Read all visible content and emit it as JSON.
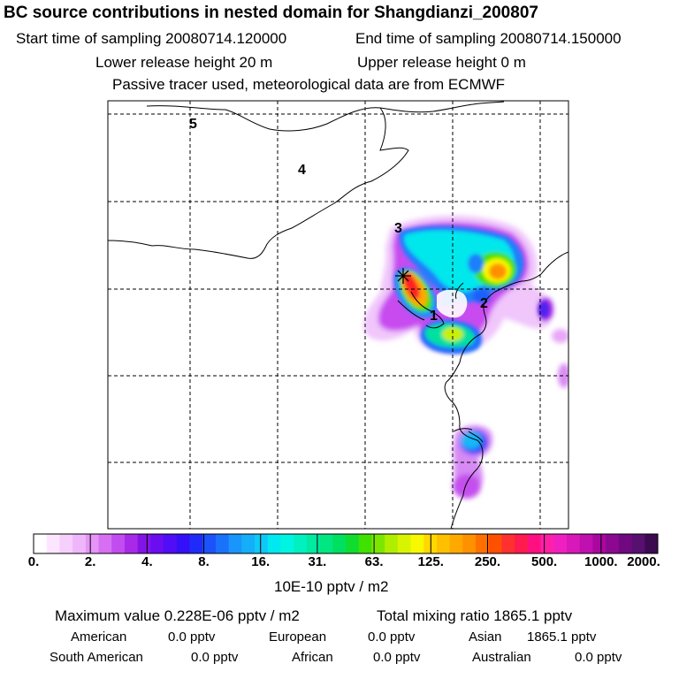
{
  "header": {
    "title": "BC  source contributions in nested domain for Shangdianzi_200807",
    "start_label": "Start time of sampling 20080714.120000",
    "end_label": "End time of sampling 20080714.150000",
    "lower_label": "Lower release height   20 m",
    "upper_label": "Upper release height    0 m",
    "tracer_note": "Passive tracer used, meteorological data are from ECMWF"
  },
  "map": {
    "region_labels": [
      "1",
      "2",
      "3",
      "4",
      "5"
    ],
    "receptor_marker": "star-marker"
  },
  "colorbar": {
    "tick_labels": [
      "0.",
      "2.",
      "4.",
      "8.",
      "16.",
      "31.",
      "63.",
      "125.",
      "250.",
      "500.",
      "1000.",
      "2000."
    ],
    "colors": [
      "#ffffff",
      "#fce6ff",
      "#f6cffd",
      "#efb6fb",
      "#e694f6",
      "#d76ff3",
      "#c24cf0",
      "#a82ae8",
      "#8314e6",
      "#6a0df0",
      "#4f0ef5",
      "#3410f8",
      "#1f2cf9",
      "#1c52fa",
      "#1a72fb",
      "#1995fb",
      "#14aef9",
      "#10c8f6",
      "#00e8f0",
      "#00f5e0",
      "#00f0c0",
      "#00eaa0",
      "#00e680",
      "#00e060",
      "#10dc30",
      "#40e000",
      "#7de600",
      "#b0ee00",
      "#d8f400",
      "#f8f800",
      "#ffd800",
      "#ffc000",
      "#ffa800",
      "#ff9000",
      "#ff7000",
      "#ff5000",
      "#ff3030",
      "#ff1a50",
      "#ff1080",
      "#ff20a8",
      "#f020c0",
      "#d818b8",
      "#c010b0",
      "#a808a0",
      "#8c0890",
      "#700880",
      "#581070",
      "#3c0a50"
    ],
    "unit_label": "10E-10 pptv / m2"
  },
  "summary": {
    "max_value": "Maximum value  0.228E-06 pptv / m2",
    "total_mixing": "Total mixing ratio     1865.1 pptv",
    "american": "American",
    "american_value": "0.0 pptv",
    "european": "European",
    "european_value": "0.0 pptv",
    "asian": "Asian",
    "asian_value": "1865.1 pptv",
    "south_american": "South American",
    "south_american_value": "0.0 pptv",
    "african": "African",
    "african_value": "0.0 pptv",
    "australian": "Australian",
    "australian_value": "0.0 pptv"
  }
}
